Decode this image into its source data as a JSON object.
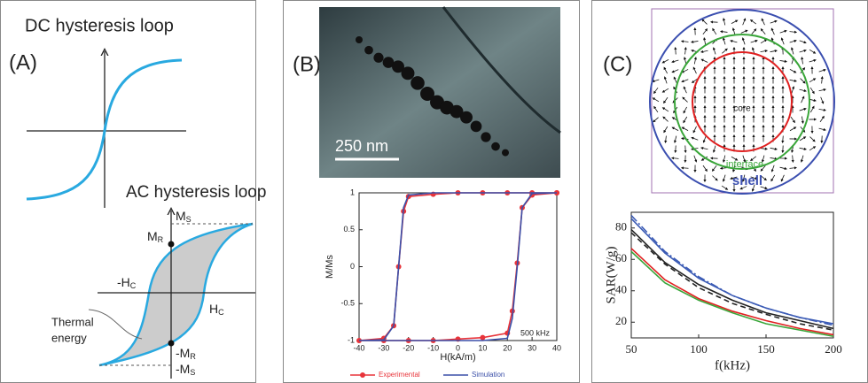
{
  "panels": {
    "a": {
      "label": "(A)",
      "dc_title": "DC hysteresis loop",
      "ac_title": "AC hysteresis loop",
      "ms": {
        "main": "M",
        "sub": "S"
      },
      "mr": {
        "main": "M",
        "sub": "R"
      },
      "neg_hc": {
        "main": "-H",
        "sub": "C"
      },
      "hc": {
        "main": "H",
        "sub": "C"
      },
      "neg_mr": {
        "main": "-M",
        "sub": "R"
      },
      "neg_ms": {
        "main": "-M",
        "sub": "S"
      },
      "thermal": [
        "Thermal",
        "energy"
      ]
    },
    "b": {
      "label": "(B)",
      "scale_bar": "250 nm"
    },
    "c": {
      "label": "(C)",
      "core": "core",
      "interface": "interface",
      "shell": "shell"
    }
  },
  "chart_data": [
    {
      "type": "line",
      "xlabel": "H(kA/m)",
      "ylabel": "M/Ms",
      "annotation": "500 kHz",
      "legend": "bottom",
      "x": [
        40,
        30,
        20,
        10,
        0,
        -10,
        -20,
        -22,
        -24,
        -26,
        -30,
        -40,
        -30,
        -20,
        -10,
        0,
        10,
        20,
        22,
        24,
        26,
        30,
        40
      ],
      "xlim": [
        -40,
        40
      ],
      "xticks": [
        -40,
        -30,
        -20,
        -10,
        0,
        10,
        20,
        30,
        40
      ],
      "ylim": [
        -1,
        1
      ],
      "yticks": [
        -1,
        -0.5,
        0,
        0.5,
        1
      ],
      "series": [
        {
          "name": "Experimental",
          "color": "#e8343a",
          "marker": true,
          "values": [
            1,
            1,
            1,
            1,
            1,
            0.98,
            0.95,
            0.75,
            0,
            -0.8,
            -0.97,
            -1,
            -1,
            -1,
            -1,
            -0.98,
            -0.96,
            -0.9,
            -0.6,
            0.05,
            0.8,
            0.97,
            1
          ]
        },
        {
          "name": "Simulation",
          "color": "#3a4fa8",
          "marker": false,
          "values": [
            1,
            1,
            1,
            1,
            1,
            1,
            0.97,
            0.8,
            0,
            -0.8,
            -0.99,
            -1,
            -1,
            -1,
            -1,
            -1,
            -1,
            -0.97,
            -0.7,
            0,
            0.8,
            0.99,
            1
          ]
        }
      ]
    },
    {
      "type": "line",
      "xlabel": "f(kHz)",
      "ylabel": "SAR(W/g)",
      "x": [
        50,
        75,
        100,
        125,
        150,
        175,
        200
      ],
      "xlim": [
        50,
        200
      ],
      "xticks": [
        50,
        100,
        150,
        200
      ],
      "ylim": [
        10,
        90
      ],
      "yticks": [
        20,
        40,
        60,
        80
      ],
      "series": [
        {
          "color": "#3b5bb5",
          "dash": "solid",
          "values": [
            86,
            64,
            48,
            37,
            29,
            23,
            19
          ]
        },
        {
          "color": "#3b5bb5",
          "dash": "dashdot",
          "values": [
            88,
            65,
            49,
            37,
            29,
            23,
            18
          ]
        },
        {
          "color": "#222222",
          "dash": "solid",
          "values": [
            79,
            58,
            44,
            34,
            26,
            21,
            16
          ]
        },
        {
          "color": "#222222",
          "dash": "dashed",
          "values": [
            77,
            57,
            42,
            32,
            25,
            19,
            15
          ]
        },
        {
          "color": "#e02020",
          "dash": "solid",
          "values": [
            67,
            47,
            35,
            27,
            21,
            16,
            12
          ]
        },
        {
          "color": "#3aa63a",
          "dash": "solid",
          "values": [
            65,
            45,
            34,
            26,
            19,
            15,
            11
          ]
        }
      ]
    }
  ]
}
